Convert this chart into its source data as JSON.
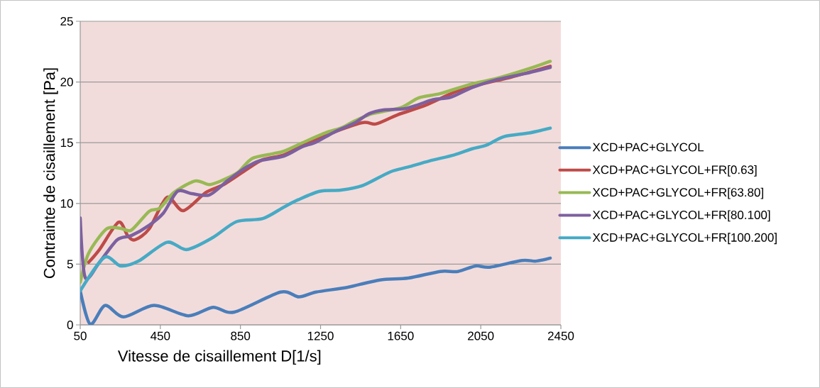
{
  "chart_data": {
    "type": "line",
    "xlabel": "Vitesse de cisaillement D[1/s]",
    "ylabel": "Contrainte de cisaillement [Pa]",
    "xlim": [
      50,
      2450
    ],
    "xticks": [
      50,
      450,
      850,
      1250,
      1650,
      2050,
      2450
    ],
    "ylim": [
      0,
      25
    ],
    "yticks": [
      0,
      5,
      10,
      15,
      20,
      25
    ],
    "grid": "y",
    "legend": "right",
    "marker": "none",
    "line_style": "solid",
    "series": [
      {
        "name": "XCD+PAC+GLYCOL",
        "color": "#4a7ebb",
        "x": [
          50,
          100,
          174,
          266,
          419,
          589,
          713,
          819,
          1050,
          1142,
          1227,
          1386,
          1546,
          1688,
          1848,
          1936,
          2025,
          2095,
          2255,
          2326,
          2397
        ],
        "values": [
          2.8,
          0.05,
          1.6,
          0.65,
          1.6,
          0.75,
          1.45,
          1.05,
          2.7,
          2.3,
          2.7,
          3.1,
          3.7,
          3.85,
          4.4,
          4.4,
          4.85,
          4.75,
          5.3,
          5.25,
          5.5
        ]
      },
      {
        "name": "XCD+PAC+GLYCOL+FR[0.63]",
        "color": "#be4b48",
        "x": [
          92,
          146,
          241,
          287,
          323,
          394,
          483,
          564,
          677,
          766,
          872,
          961,
          1067,
          1174,
          1280,
          1457,
          1528,
          1635,
          1776,
          1918,
          2060,
          2202,
          2397
        ],
        "values": [
          5.15,
          6.2,
          8.45,
          7.35,
          7.0,
          7.9,
          10.5,
          9.4,
          10.9,
          11.55,
          12.7,
          13.6,
          14.0,
          14.9,
          15.65,
          16.65,
          16.55,
          17.3,
          18.1,
          19.15,
          19.85,
          20.4,
          21.3
        ]
      },
      {
        "name": "XCD+PAC+GLYCOL+FR[63.80]",
        "color": "#98b954",
        "x": [
          50,
          92,
          181,
          252,
          305,
          394,
          447,
          518,
          624,
          695,
          766,
          837,
          908,
          1014,
          1067,
          1174,
          1280,
          1351,
          1422,
          1510,
          1652,
          1741,
          1848,
          2007,
          2131,
          2273,
          2397
        ],
        "values": [
          3.5,
          5.9,
          7.9,
          7.95,
          7.8,
          9.35,
          9.6,
          10.9,
          11.85,
          11.55,
          11.95,
          12.55,
          13.7,
          14.1,
          14.3,
          15.1,
          15.85,
          16.2,
          16.8,
          17.4,
          17.9,
          18.7,
          19.05,
          19.85,
          20.3,
          21.0,
          21.7
        ]
      },
      {
        "name": "XCD+PAC+GLYCOL+FR[80.100]",
        "color": "#7d60a0",
        "x": [
          50,
          75,
          146,
          234,
          305,
          394,
          465,
          536,
          607,
          695,
          784,
          872,
          943,
          1067,
          1156,
          1227,
          1316,
          1422,
          1493,
          1564,
          1670,
          1741,
          1812,
          1900,
          2007,
          2131,
          2273,
          2397
        ],
        "values": [
          8.8,
          3.9,
          5.15,
          7.0,
          7.35,
          8.2,
          9.2,
          11.0,
          10.8,
          10.7,
          11.85,
          12.9,
          13.5,
          13.9,
          14.65,
          15.05,
          15.85,
          16.65,
          17.4,
          17.7,
          17.8,
          18.15,
          18.55,
          18.75,
          19.55,
          20.2,
          20.7,
          21.2
        ]
      },
      {
        "name": "XCD+PAC+GLYCOL+FR[100.200]",
        "color": "#46aac5",
        "x": [
          50,
          170,
          252,
          341,
          483,
          582,
          713,
          830,
          961,
          1067,
          1138,
          1245,
          1351,
          1457,
          1599,
          1688,
          1794,
          1918,
          2007,
          2078,
          2166,
          2290,
          2397
        ],
        "values": [
          2.8,
          5.55,
          4.85,
          5.25,
          6.8,
          6.2,
          7.2,
          8.5,
          8.75,
          9.7,
          10.3,
          11.0,
          11.1,
          11.45,
          12.6,
          13.0,
          13.5,
          14.0,
          14.5,
          14.8,
          15.5,
          15.8,
          16.2
        ]
      }
    ]
  }
}
